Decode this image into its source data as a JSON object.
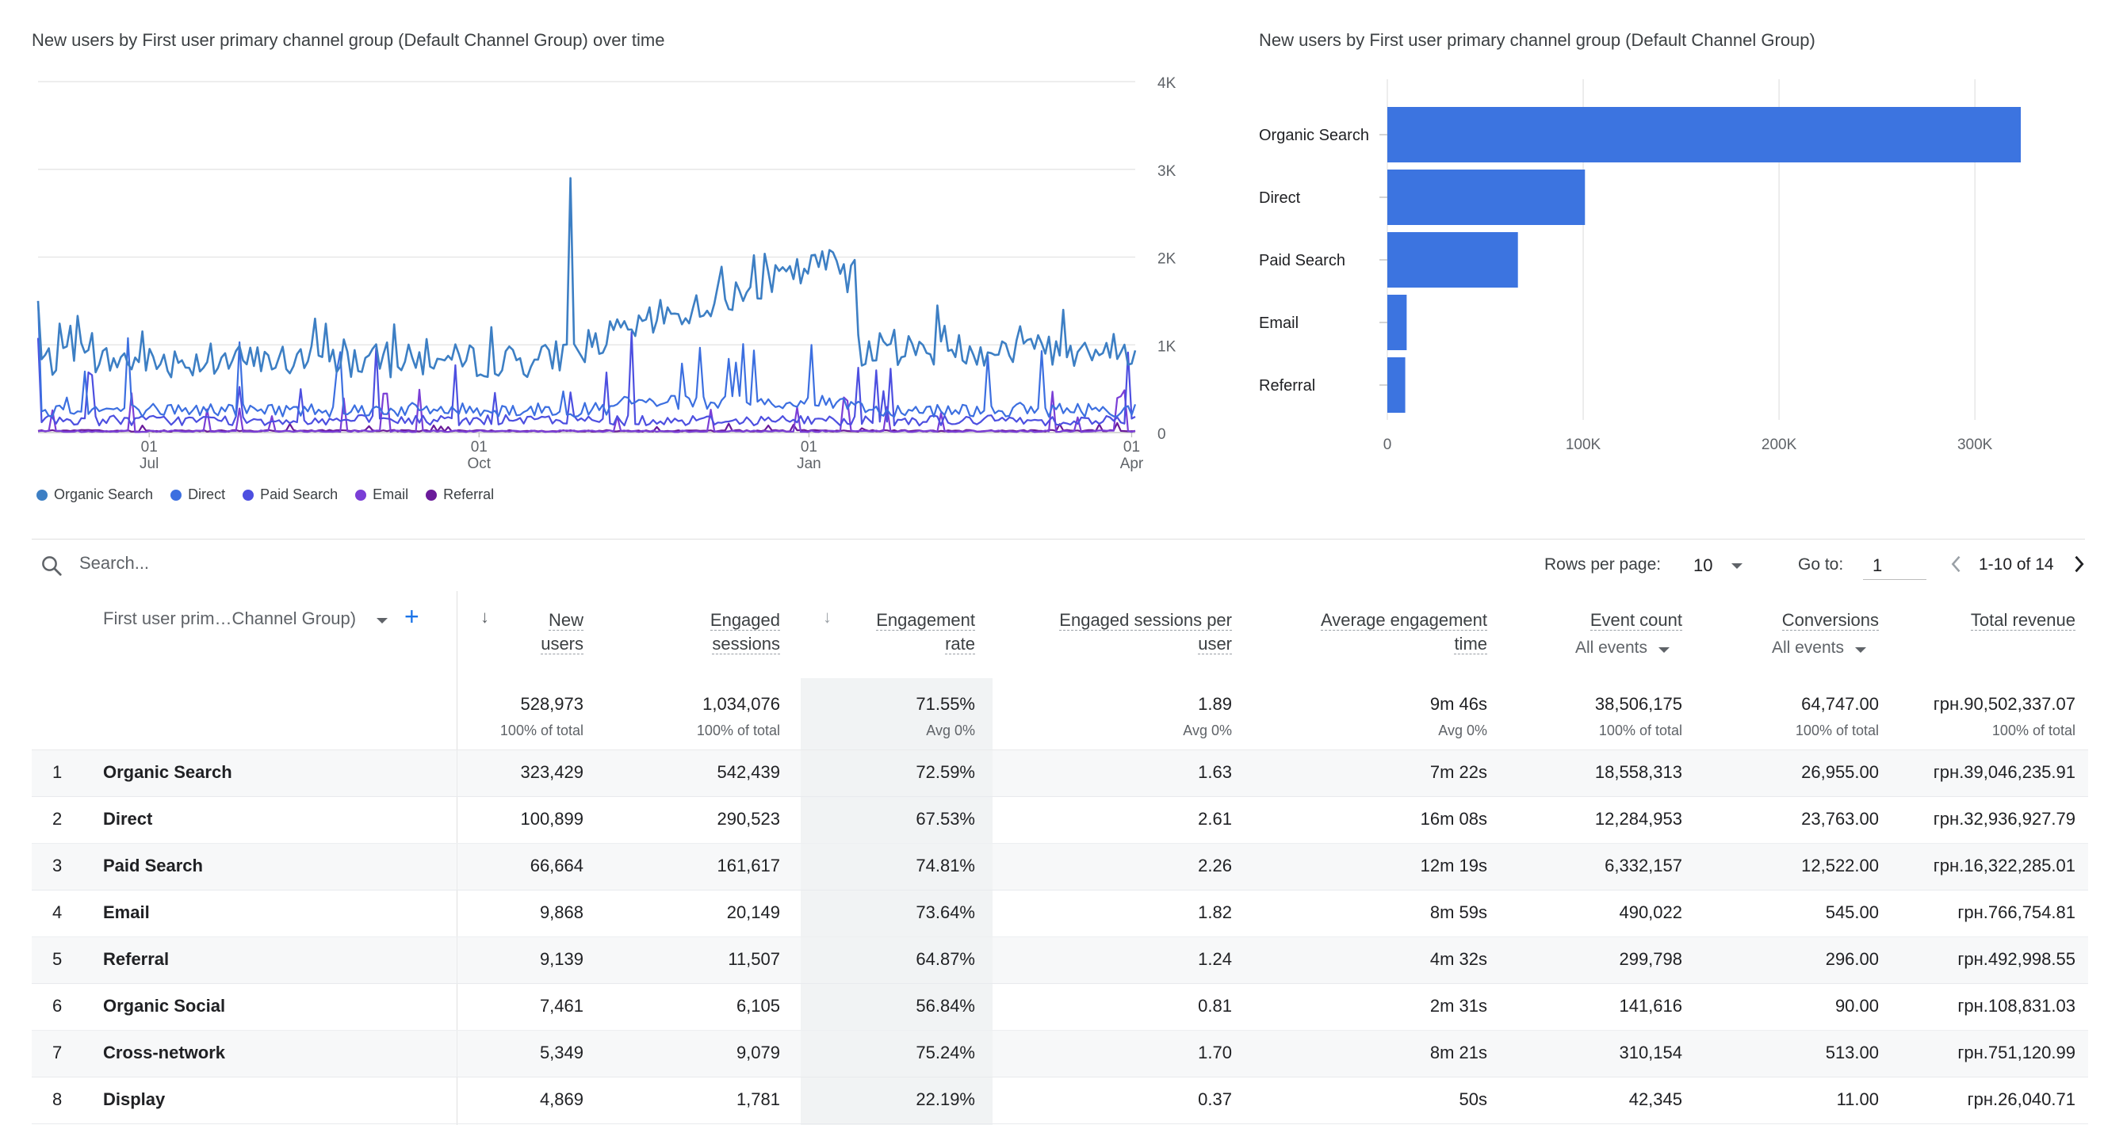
{
  "line_chart": {
    "title": "New users by First user primary channel group (Default Channel Group) over time",
    "y_ticks": [
      "4K",
      "3K",
      "2K",
      "1K",
      "0"
    ],
    "x_ticks": [
      {
        "day": "01",
        "month": "Jul"
      },
      {
        "day": "01",
        "month": "Oct"
      },
      {
        "day": "01",
        "month": "Jan"
      },
      {
        "day": "01",
        "month": "Apr"
      }
    ],
    "legend": [
      {
        "label": "Organic Search",
        "color": "#3d7fc4"
      },
      {
        "label": "Direct",
        "color": "#3c6fe0"
      },
      {
        "label": "Paid Search",
        "color": "#4d4fe0"
      },
      {
        "label": "Email",
        "color": "#7a3ed6"
      },
      {
        "label": "Referral",
        "color": "#6a1b9a"
      }
    ]
  },
  "chart_data": [
    {
      "type": "line",
      "title": "New users by First user primary channel group (Default Channel Group) over time",
      "x_range": [
        "2022-05-31",
        "2023-04-02"
      ],
      "ylim": [
        0,
        4000
      ],
      "grid": true,
      "legend_position": "bottom",
      "series_summary": [
        {
          "name": "Organic Search",
          "typical": 900,
          "peak": 2900,
          "peak_date": "2022-10-25"
        },
        {
          "name": "Direct",
          "typical": 250,
          "peak": 1500,
          "peak_date": "2022-06-01"
        },
        {
          "name": "Paid Search",
          "typical": 150,
          "peak": 1100,
          "peak_date": "2022-07-05"
        },
        {
          "name": "Email",
          "typical": 20,
          "peak": 500,
          "peak_date": "2022-07-03"
        },
        {
          "name": "Referral",
          "typical": 25,
          "peak": 100,
          "peak_date": "2022-09-01"
        }
      ]
    },
    {
      "type": "bar",
      "orientation": "horizontal",
      "title": "New users by First user primary channel group (Default Channel Group)",
      "categories": [
        "Organic Search",
        "Direct",
        "Paid Search",
        "Email",
        "Referral"
      ],
      "values": [
        323429,
        100899,
        66664,
        9868,
        9139
      ],
      "x_ticks": [
        "0",
        "100K",
        "200K",
        "300K"
      ],
      "xlim": [
        0,
        340000
      ],
      "color": "#3c74e0",
      "grid": true
    }
  ],
  "toolbar": {
    "search_placeholder": "Search...",
    "rows_per_page_label": "Rows per page:",
    "rows_per_page_value": "10",
    "goto_label": "Go to:",
    "goto_value": "1",
    "range_text": "1-10 of 14"
  },
  "table": {
    "dimension_header": "First user prim…Channel Group)",
    "columns": [
      {
        "line1": "New",
        "line2": "users",
        "sorted": true
      },
      {
        "line1": "Engaged",
        "line2": "sessions"
      },
      {
        "line1": "Engagement",
        "line2": "rate",
        "sort_hint": true
      },
      {
        "line1": "Engaged sessions per",
        "line2": "user"
      },
      {
        "line1": "Average engagement",
        "line2": "time"
      },
      {
        "line1": "Event count",
        "sub": "All events"
      },
      {
        "line1": "Conversions",
        "sub": "All events"
      },
      {
        "line1": "Total revenue"
      }
    ],
    "totals": [
      {
        "value": "528,973",
        "sub": "100% of total"
      },
      {
        "value": "1,034,076",
        "sub": "100% of total"
      },
      {
        "value": "71.55%",
        "sub": "Avg 0%"
      },
      {
        "value": "1.89",
        "sub": "Avg 0%"
      },
      {
        "value": "9m 46s",
        "sub": "Avg 0%"
      },
      {
        "value": "38,506,175",
        "sub": "100% of total"
      },
      {
        "value": "64,747.00",
        "sub": "100% of total"
      },
      {
        "value": "грн.90,502,337.07",
        "sub": "100% of total"
      }
    ],
    "rows": [
      {
        "num": "1",
        "name": "Organic Search",
        "cells": [
          "323,429",
          "542,439",
          "72.59%",
          "1.63",
          "7m 22s",
          "18,558,313",
          "26,955.00",
          "грн.39,046,235.91"
        ]
      },
      {
        "num": "2",
        "name": "Direct",
        "cells": [
          "100,899",
          "290,523",
          "67.53%",
          "2.61",
          "16m 08s",
          "12,284,953",
          "23,763.00",
          "грн.32,936,927.79"
        ]
      },
      {
        "num": "3",
        "name": "Paid Search",
        "cells": [
          "66,664",
          "161,617",
          "74.81%",
          "2.26",
          "12m 19s",
          "6,332,157",
          "12,522.00",
          "грн.16,322,285.01"
        ]
      },
      {
        "num": "4",
        "name": "Email",
        "cells": [
          "9,868",
          "20,149",
          "73.64%",
          "1.82",
          "8m 59s",
          "490,022",
          "545.00",
          "грн.766,754.81"
        ]
      },
      {
        "num": "5",
        "name": "Referral",
        "cells": [
          "9,139",
          "11,507",
          "64.87%",
          "1.24",
          "4m 32s",
          "299,798",
          "296.00",
          "грн.492,998.55"
        ]
      },
      {
        "num": "6",
        "name": "Organic Social",
        "cells": [
          "7,461",
          "6,105",
          "56.84%",
          "0.81",
          "2m 31s",
          "141,616",
          "90.00",
          "грн.108,831.03"
        ]
      },
      {
        "num": "7",
        "name": "Cross-network",
        "cells": [
          "5,349",
          "9,079",
          "75.24%",
          "1.70",
          "8m 21s",
          "310,154",
          "513.00",
          "грн.751,120.99"
        ]
      },
      {
        "num": "8",
        "name": "Display",
        "cells": [
          "4,869",
          "1,781",
          "22.19%",
          "0.37",
          "50s",
          "42,345",
          "11.00",
          "грн.26,040.71"
        ]
      }
    ]
  }
}
